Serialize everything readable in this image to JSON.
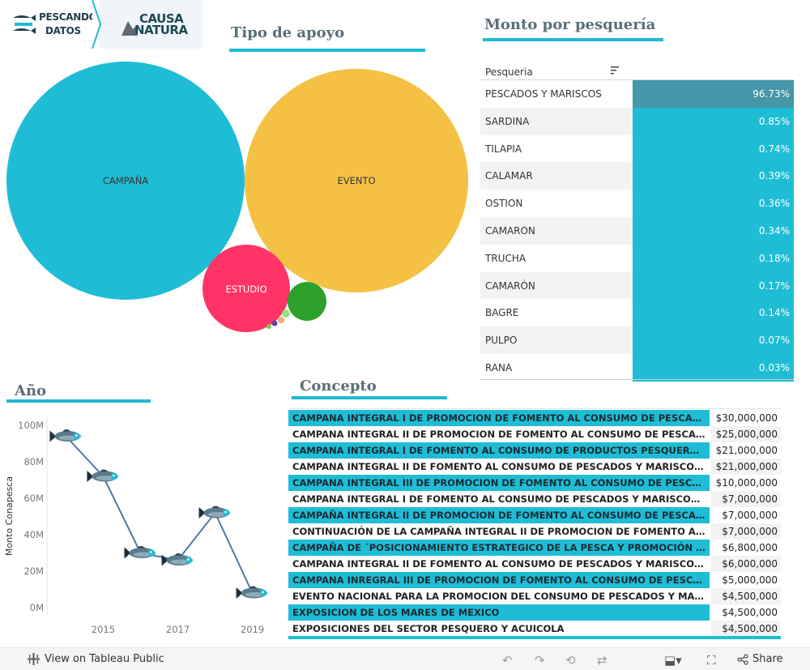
{
  "header": {
    "logo1_line1": "PESCANDO",
    "logo1_line2": "DATOS",
    "logo2_line1": "CAUSA",
    "logo2_line2": "NATURA"
  },
  "tipo": {
    "title": "Tipo  de  apoyo",
    "bubbles": [
      {
        "label": "CAMPAÑA",
        "color": "#1fbdd5"
      },
      {
        "label": "EVENTO",
        "color": "#f5c144"
      },
      {
        "label": "ESTUDIO",
        "color": "#ff3366"
      },
      {
        "label": "",
        "color": "#2ea02c"
      }
    ]
  },
  "monto": {
    "title": "Monto  por  pesquería",
    "column_header": "Pesqueria",
    "rows": [
      {
        "name": "PESCADOS Y MARISCOS",
        "pct": "96.73%"
      },
      {
        "name": "SARDINA",
        "pct": "0.85%"
      },
      {
        "name": "TILAPIA",
        "pct": "0.74%"
      },
      {
        "name": "CALAMAR",
        "pct": "0.39%"
      },
      {
        "name": "OSTION",
        "pct": "0.36%"
      },
      {
        "name": "CAMARON",
        "pct": "0.34%"
      },
      {
        "name": "TRUCHA",
        "pct": "0.18%"
      },
      {
        "name": "CAMARÓN",
        "pct": "0.17%"
      },
      {
        "name": "BAGRE",
        "pct": "0.14%"
      },
      {
        "name": "PULPO",
        "pct": "0.07%"
      },
      {
        "name": "RANA",
        "pct": "0.03%"
      }
    ]
  },
  "anio": {
    "title": "Año",
    "ylabel": "Monto Conapesca"
  },
  "chart_data": {
    "type": "line",
    "title": "Año",
    "xlabel": "",
    "ylabel": "Monto Conapesca",
    "x": [
      2014,
      2015,
      2016,
      2017,
      2018,
      2019
    ],
    "y": [
      94000000,
      72000000,
      30000000,
      26000000,
      52000000,
      8000000
    ],
    "x_ticks": [
      "2015",
      "2017",
      "2019"
    ],
    "y_ticks": [
      "100M",
      "80M",
      "60M",
      "40M",
      "20M",
      "0M"
    ],
    "ylim": [
      0,
      100000000
    ],
    "xlim": [
      2013.6,
      2019.4
    ],
    "line_color": "#4e79a7"
  },
  "concepto": {
    "title": "Concepto",
    "rows": [
      {
        "label": "CAMPANA INTEGRAL I DE PROMOCION DE FOMENTO AL CONSUMO DE PESCADOS Y MAR..",
        "amount": "$30,000,000",
        "hl": true
      },
      {
        "label": "CAMPANA INTEGRAL II DE PROMOCION DE FOMENTO AL CONSUMO DE PESCADOS Y MARI..",
        "amount": "$25,000,000",
        "hl": false
      },
      {
        "label": "CAMPANA INTEGRAL I DE FOMENTO AL CONSUMO DE PRODUCTOS PESQUEROS Y ACUICO..",
        "amount": "$21,000,000",
        "hl": true
      },
      {
        "label": "CAMPANA INTEGRAL II DE FOMENTO AL CONSUMO DE PESCADOS Y MARISCOS MEXICANOS",
        "amount": "$21,000,000",
        "hl": false
      },
      {
        "label": "CAMPANA INTEGRAL III DE PROMOCION DE FOMENTO AL CONSUMO DE PESCADOS Y MAR..",
        "amount": "$10,000,000",
        "hl": true
      },
      {
        "label": "CAMPANA INTEGRAL I DE FOMENTO AL CONSUMO DE PESCADOS Y MARISCOS MEXICANO..",
        "amount": "$7,000,000",
        "hl": false
      },
      {
        "label": "CAMPAÑA INTEGRAL II DE PROMOCION DE FOMENTO AL CONSUMO DE PESCADOS Y MARI..",
        "amount": "$7,000,000",
        "hl": true
      },
      {
        "label": "CONTINUACIÓN DE LA CAMPAÑA INTEGRAL II DE PROMOCION DE FOMENTO AL CONSUMO..",
        "amount": "$7,000,000",
        "hl": false
      },
      {
        "label": "CAMPAÑA DE ´POSICIONAMIENTO ESTRATEGICO DE LA PESCA Y PROMOCIÓN DE LA PESC..",
        "amount": "$6,800,000",
        "hl": true
      },
      {
        "label": "CAMPANA INTEGRAL II DE FOMENTO AL CONSUMO DE PESCADOS Y MARISCOS MEXICANO..",
        "amount": "$6,000,000",
        "hl": false
      },
      {
        "label": "CAMPANA INREGRAL III DE PROMOCION DE FOMENTO AL CONSUMO DE PESCADOS Y MAR..",
        "amount": "$5,000,000",
        "hl": true
      },
      {
        "label": "EVENTO NACIONAL PARA LA PROMOCION DEL CONSUMO DE PESCADOS Y MARISCOS MEX..",
        "amount": "$4,500,000",
        "hl": false
      },
      {
        "label": "EXPOSICION DE LOS MARES DE MEXICO",
        "amount": "$4,500,000",
        "hl": true
      },
      {
        "label": "EXPOSICIONES DEL SECTOR PESQUERO Y ACUICOLA",
        "amount": "$4,500,000",
        "hl": false
      }
    ]
  },
  "footer": {
    "view_label": "View on Tableau Public",
    "share_label": "Share"
  }
}
